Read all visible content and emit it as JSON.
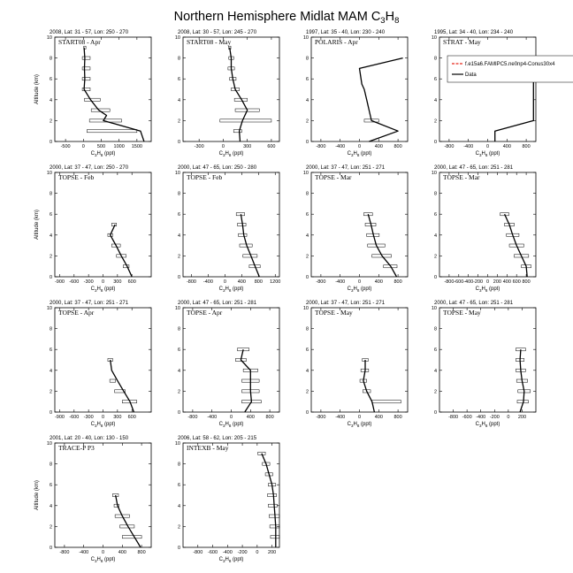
{
  "page": {
    "title_main": "Northern Hemisphere Midlat MAM C",
    "title_sub1": "3",
    "title_mid": "H",
    "title_sub2": "8"
  },
  "colors": {
    "model": "#e8271b",
    "data": "#000000"
  },
  "chart_data": [
    {
      "type": "line",
      "region": "2008, Lat: 31 - 57, Lon: 250 - 270",
      "campaign": "START08 - Apr",
      "xlim": [
        -800,
        1900
      ],
      "xticks": [
        -500,
        0,
        500,
        1000,
        1500
      ],
      "ylim": [
        0,
        10
      ],
      "yticks": [
        0,
        2,
        4,
        6,
        8,
        10
      ],
      "xlabel": "C3H8 (ppt)",
      "ylabel": "Altitude (km)",
      "series": [
        {
          "values": [
            [
              20,
              9
            ],
            [
              40,
              8
            ],
            [
              30,
              7
            ],
            [
              40,
              6
            ],
            [
              20,
              5
            ],
            [
              200,
              4
            ],
            [
              430,
              3
            ],
            [
              650,
              2.5
            ],
            [
              560,
              2
            ],
            [
              1600,
              1
            ],
            [
              1700,
              0
            ]
          ]
        }
      ],
      "spread": [
        [
          40,
          9,
          30
        ],
        [
          80,
          8,
          110
        ],
        [
          80,
          7,
          110
        ],
        [
          80,
          6,
          110
        ],
        [
          80,
          5,
          110
        ],
        [
          250,
          4,
          220
        ],
        [
          480,
          3,
          260
        ],
        [
          620,
          2,
          450
        ],
        [
          800,
          1,
          700
        ]
      ]
    },
    {
      "type": "line",
      "region": "2008, Lat: 30 - 57, Lon: 245 - 270",
      "campaign": "START08 - May",
      "xlim": [
        -500,
        700
      ],
      "xticks": [
        -300,
        0,
        300,
        600
      ],
      "ylim": [
        0,
        10
      ],
      "yticks": [
        0,
        2,
        4,
        6,
        8,
        10
      ],
      "xlabel": "C3H8 (ppt)",
      "ylabel": "",
      "series": [
        {
          "values": [
            [
              80,
              9
            ],
            [
              100,
              8
            ],
            [
              100,
              7
            ],
            [
              120,
              6
            ],
            [
              150,
              5
            ],
            [
              230,
              4
            ],
            [
              300,
              3
            ],
            [
              240,
              2
            ],
            [
              200,
              1
            ],
            [
              210,
              0
            ]
          ]
        }
      ],
      "spread": [
        [
          80,
          9,
          15
        ],
        [
          100,
          8,
          30
        ],
        [
          100,
          7,
          40
        ],
        [
          120,
          6,
          40
        ],
        [
          150,
          5,
          50
        ],
        [
          220,
          4,
          80
        ],
        [
          300,
          3,
          150
        ],
        [
          280,
          2,
          320
        ],
        [
          180,
          1,
          50
        ]
      ]
    },
    {
      "type": "line",
      "region": "1997, Lat: 35 - 40, Lon: 230 - 240",
      "campaign": "POLARIS - Apr",
      "xlim": [
        -1000,
        1000
      ],
      "xticks": [
        -800,
        -400,
        0,
        400,
        800
      ],
      "ylim": [
        0,
        10
      ],
      "yticks": [
        0,
        2,
        4,
        6,
        8,
        10
      ],
      "xlabel": "C3H8 (ppt)",
      "ylabel": "",
      "series": [
        {
          "values": [
            [
              900,
              8
            ],
            [
              0,
              7
            ],
            [
              50,
              5.5
            ],
            [
              100,
              5
            ],
            [
              150,
              4
            ],
            [
              200,
              3
            ],
            [
              250,
              2
            ],
            [
              800,
              1
            ],
            [
              200,
              0
            ]
          ]
        }
      ],
      "spread": [
        [
          250,
          2,
          150
        ]
      ]
    },
    {
      "type": "line",
      "region": "1995, Lat: 34 - 40, Lon: 234 - 240",
      "campaign": "STRAT - May",
      "xlim": [
        -1000,
        1000
      ],
      "xticks": [
        -800,
        -400,
        0,
        400,
        800
      ],
      "ylim": [
        0,
        10
      ],
      "yticks": [
        0,
        2,
        4,
        6,
        8,
        10
      ],
      "xlabel": "C3H8 (ppt)",
      "ylabel": "",
      "series": [
        {
          "values": [
            [
              950,
              8
            ],
            [
              950,
              2
            ],
            [
              150,
              1
            ],
            [
              150,
              0
            ]
          ]
        }
      ],
      "spread": [],
      "legend": [
        "f.e15a6.FAMIPC5.ne0np4-Conus30x4",
        "Data"
      ]
    },
    {
      "type": "line",
      "region": "2000, Lat: 37 - 47, Lon: 250 - 270",
      "campaign": "TOPSE - Feb",
      "xlim": [
        -1000,
        1000
      ],
      "xticks": [
        -900,
        -600,
        -300,
        0,
        300,
        600
      ],
      "ylim": [
        0,
        10
      ],
      "yticks": [
        0,
        2,
        4,
        6,
        8,
        10
      ],
      "xlabel": "C3H8 (ppt)",
      "ylabel": "Altitude (km)",
      "series": [
        {
          "values": [
            [
              250,
              5
            ],
            [
              150,
              4
            ],
            [
              270,
              3
            ],
            [
              380,
              2
            ],
            [
              500,
              1
            ],
            [
              600,
              0
            ]
          ]
        }
      ],
      "spread": [
        [
          230,
          5,
          50
        ],
        [
          150,
          4,
          50
        ],
        [
          270,
          3,
          90
        ],
        [
          380,
          2,
          100
        ],
        [
          480,
          1,
          60
        ]
      ]
    },
    {
      "type": "line",
      "region": "2000, Lat: 47 - 65, Lon: 250 - 280",
      "campaign": "TOPSE - Feb",
      "xlim": [
        -1000,
        1300
      ],
      "xticks": [
        -800,
        -400,
        0,
        400,
        800,
        1200
      ],
      "ylim": [
        0,
        10
      ],
      "yticks": [
        0,
        2,
        4,
        6,
        8,
        10
      ],
      "xlabel": "C3H8 (ppt)",
      "ylabel": "",
      "series": [
        {
          "values": [
            [
              380,
              6
            ],
            [
              420,
              5
            ],
            [
              450,
              4
            ],
            [
              520,
              3
            ],
            [
              620,
              2
            ],
            [
              720,
              1
            ],
            [
              820,
              0
            ]
          ]
        }
      ],
      "spread": [
        [
          370,
          6,
          100
        ],
        [
          400,
          5,
          100
        ],
        [
          420,
          4,
          100
        ],
        [
          500,
          3,
          150
        ],
        [
          600,
          2,
          170
        ],
        [
          710,
          1,
          130
        ]
      ]
    },
    {
      "type": "line",
      "region": "2000, Lat: 37 - 47, Lon: 251 - 271",
      "campaign": "TOPSE - Mar",
      "xlim": [
        -1000,
        1000
      ],
      "xticks": [
        -800,
        -400,
        0,
        400,
        800
      ],
      "ylim": [
        0,
        10
      ],
      "yticks": [
        0,
        2,
        4,
        6,
        8,
        10
      ],
      "xlabel": "C3H8 (ppt)",
      "ylabel": "",
      "series": [
        {
          "values": [
            [
              180,
              6
            ],
            [
              240,
              5
            ],
            [
              290,
              4
            ],
            [
              350,
              3
            ],
            [
              470,
              2
            ],
            [
              650,
              1
            ],
            [
              770,
              0
            ]
          ]
        }
      ],
      "spread": [
        [
          180,
          6,
          90
        ],
        [
          230,
          5,
          110
        ],
        [
          280,
          4,
          130
        ],
        [
          350,
          3,
          180
        ],
        [
          460,
          2,
          200
        ],
        [
          640,
          1,
          140
        ]
      ]
    },
    {
      "type": "line",
      "region": "2000, Lat: 47 - 65, Lon: 251 - 281",
      "campaign": "TOPSE - Mar",
      "xlim": [
        -1000,
        1000
      ],
      "xticks": [
        -800,
        -600,
        -400,
        -200,
        0,
        200,
        400,
        600,
        800
      ],
      "ylim": [
        0,
        10
      ],
      "yticks": [
        0,
        2,
        4,
        6,
        8,
        10
      ],
      "xlabel": "C3H8 (ppt)",
      "ylabel": "",
      "series": [
        {
          "values": [
            [
              350,
              6
            ],
            [
              450,
              5
            ],
            [
              520,
              4
            ],
            [
              600,
              3
            ],
            [
              700,
              2
            ],
            [
              800,
              1
            ],
            [
              820,
              0
            ]
          ]
        }
      ],
      "spread": [
        [
          350,
          6,
          90
        ],
        [
          450,
          5,
          100
        ],
        [
          520,
          4,
          130
        ],
        [
          600,
          3,
          150
        ],
        [
          700,
          2,
          150
        ],
        [
          800,
          1,
          100
        ]
      ]
    },
    {
      "type": "line",
      "region": "2000, Lat: 37 - 47, Lon: 251 - 271",
      "campaign": "TOPSE - Apr",
      "xlim": [
        -1000,
        1000
      ],
      "xticks": [
        -900,
        -600,
        -300,
        0,
        300,
        600
      ],
      "ylim": [
        0,
        10
      ],
      "yticks": [
        0,
        2,
        4,
        6,
        8,
        10
      ],
      "xlabel": "C3H8 (ppt)",
      "ylabel": "",
      "series": [
        {
          "values": [
            [
              150,
              5
            ],
            [
              180,
              4
            ],
            [
              300,
              3
            ],
            [
              430,
              2
            ],
            [
              560,
              1
            ],
            [
              640,
              0
            ]
          ]
        }
      ],
      "spread": [
        [
          150,
          5,
          50
        ],
        [
          200,
          3,
          60
        ],
        [
          350,
          2,
          110
        ],
        [
          550,
          1,
          150
        ]
      ]
    },
    {
      "type": "line",
      "region": "2000, Lat: 47 - 65, Lon: 251 - 281",
      "campaign": "TOPSE - Apr",
      "xlim": [
        -1000,
        1000
      ],
      "xticks": [
        -800,
        -400,
        0,
        400,
        800
      ],
      "ylim": [
        0,
        10
      ],
      "yticks": [
        0,
        2,
        4,
        6,
        8,
        10
      ],
      "xlabel": "C3H8 (ppt)",
      "ylabel": "",
      "series": [
        {
          "values": [
            [
              250,
              6
            ],
            [
              200,
              5
            ],
            [
              400,
              4
            ],
            [
              400,
              3
            ],
            [
              400,
              2
            ],
            [
              420,
              1
            ],
            [
              280,
              0
            ]
          ]
        }
      ],
      "spread": [
        [
          250,
          6,
          120
        ],
        [
          200,
          5,
          110
        ],
        [
          400,
          4,
          150
        ],
        [
          400,
          3,
          180
        ],
        [
          400,
          2,
          180
        ],
        [
          420,
          1,
          200
        ]
      ]
    },
    {
      "type": "line",
      "region": "2000, Lat: 37 - 47, Lon: 251 - 271",
      "campaign": "TOPSE - May",
      "xlim": [
        -1000,
        1000
      ],
      "xticks": [
        -800,
        -400,
        0,
        400,
        800
      ],
      "ylim": [
        0,
        10
      ],
      "yticks": [
        0,
        2,
        4,
        6,
        8,
        10
      ],
      "xlabel": "C3H8 (ppt)",
      "ylabel": "",
      "series": [
        {
          "values": [
            [
              120,
              5
            ],
            [
              120,
              4
            ],
            [
              80,
              3
            ],
            [
              150,
              2
            ],
            [
              260,
              1
            ],
            [
              310,
              0
            ]
          ]
        }
      ],
      "spread": [
        [
          120,
          5,
          60
        ],
        [
          110,
          4,
          80
        ],
        [
          80,
          3,
          70
        ],
        [
          150,
          2,
          80
        ],
        [
          560,
          1,
          300
        ]
      ]
    },
    {
      "type": "line",
      "region": "2000, Lat: 47 - 65, Lon: 251 - 281",
      "campaign": "TOPSE - May",
      "xlim": [
        -1000,
        400
      ],
      "xticks": [
        -800,
        -600,
        -400,
        -200,
        0,
        200
      ],
      "ylim": [
        0,
        10
      ],
      "yticks": [
        0,
        2,
        4,
        6,
        8,
        10
      ],
      "xlabel": "C3H8 (ppt)",
      "ylabel": "",
      "series": [
        {
          "values": [
            [
              180,
              6
            ],
            [
              170,
              5
            ],
            [
              180,
              4
            ],
            [
              200,
              3
            ],
            [
              230,
              2
            ],
            [
              220,
              1
            ],
            [
              170,
              0
            ]
          ]
        }
      ],
      "spread": [
        [
          180,
          6,
          70
        ],
        [
          170,
          5,
          60
        ],
        [
          180,
          4,
          70
        ],
        [
          200,
          3,
          80
        ],
        [
          230,
          2,
          90
        ],
        [
          210,
          1,
          80
        ]
      ]
    },
    {
      "type": "line",
      "region": "2001, Lat: 20 - 40, Lon: 130 - 150",
      "campaign": "TRACE-P P3",
      "xlim": [
        -1000,
        1000
      ],
      "xticks": [
        -800,
        -400,
        0,
        400,
        800
      ],
      "ylim": [
        0,
        10
      ],
      "yticks": [
        0,
        2,
        4,
        6,
        8,
        10
      ],
      "xlabel": "C3H8 (ppt)",
      "ylabel": "Altitude (km)",
      "series": [
        {
          "values": [
            [
              260,
              5
            ],
            [
              300,
              4
            ],
            [
              400,
              3
            ],
            [
              520,
              2
            ],
            [
              650,
              1
            ],
            [
              780,
              0
            ]
          ]
        }
      ],
      "spread": [
        [
          260,
          5,
          60
        ],
        [
          280,
          4,
          50
        ],
        [
          400,
          3,
          150
        ],
        [
          500,
          2,
          150
        ],
        [
          600,
          1,
          200
        ]
      ]
    },
    {
      "type": "line",
      "region": "2006, Lat: 58 - 62, Lon: 205 - 215",
      "campaign": "INTEXB - May",
      "xlim": [
        -1000,
        300
      ],
      "xticks": [
        -800,
        -600,
        -400,
        -200,
        0,
        200
      ],
      "ylim": [
        0,
        10
      ],
      "yticks": [
        0,
        2,
        4,
        6,
        8,
        10
      ],
      "xlabel": "C3H8 (ppt)",
      "ylabel": "",
      "series": [
        {
          "values": [
            [
              60,
              9
            ],
            [
              120,
              8
            ],
            [
              160,
              7
            ],
            [
              200,
              6
            ],
            [
              220,
              5
            ],
            [
              230,
              4
            ],
            [
              240,
              3
            ],
            [
              250,
              2
            ],
            [
              250,
              1
            ],
            [
              250,
              0
            ]
          ]
        }
      ],
      "spread": [
        [
          60,
          9,
          50
        ],
        [
          120,
          8,
          50
        ],
        [
          160,
          7,
          50
        ],
        [
          200,
          6,
          50
        ],
        [
          200,
          5,
          60
        ],
        [
          210,
          4,
          60
        ],
        [
          230,
          3,
          70
        ],
        [
          240,
          2,
          70
        ],
        [
          240,
          1,
          60
        ]
      ]
    }
  ]
}
